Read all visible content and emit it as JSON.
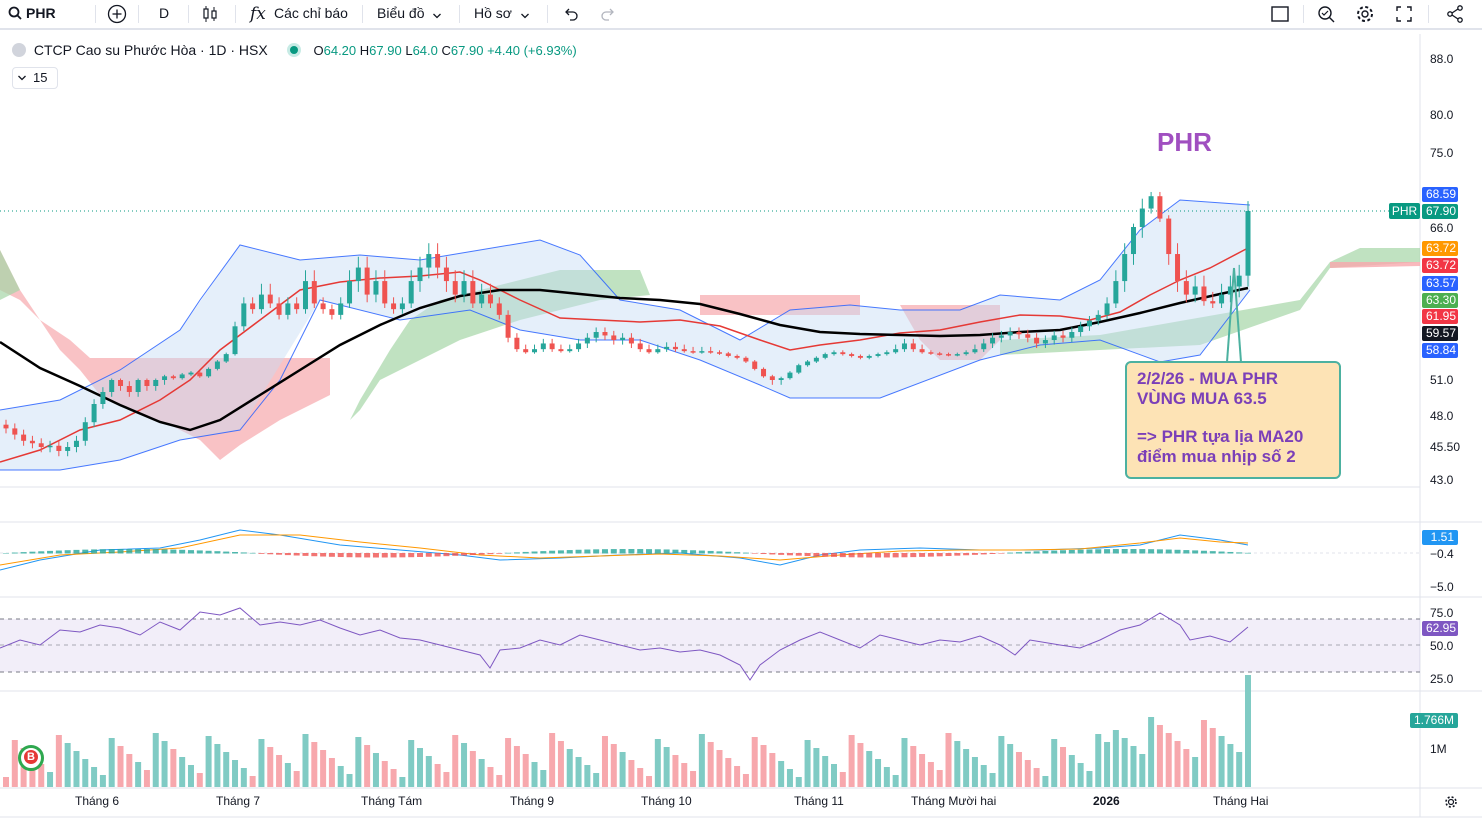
{
  "toolbar": {
    "symbol": "PHR",
    "interval": "D",
    "indicators_label": "Các chỉ báo",
    "chart_type_label": "Biểu đồ",
    "profile_label": "Hồ sơ"
  },
  "legend": {
    "title": "CTCP Cao su Phước Hòa · 1D · HSX",
    "open_key": "O",
    "open": "64.20",
    "high_key": "H",
    "high": "67.90",
    "low_key": "L",
    "low": "64.0",
    "close_key": "C",
    "close": "67.90",
    "change": "+4.40 (+6.93%)",
    "studies_count": "15"
  },
  "annotation": {
    "title": "PHR",
    "line1": "2/2/26 - MUA PHR",
    "line2": "VÙNG MUA 63.5",
    "line3": "=> PHR tựa lịa MA20",
    "line4": "điểm mua nhịp số 2"
  },
  "price_axis": {
    "labels": [
      "88.0",
      "80.0",
      "75.0",
      "66.0",
      "51.0",
      "48.0",
      "45.50",
      "43.0"
    ],
    "tags": [
      {
        "value": "68.59",
        "color": "#2962ff"
      },
      {
        "value": "67.90",
        "color": "#089981"
      },
      {
        "value": "63.72",
        "color": "#ff9800"
      },
      {
        "value": "63.72",
        "color": "#f23645"
      },
      {
        "value": "63.57",
        "color": "#2962ff"
      },
      {
        "value": "63.30",
        "color": "#4caf50"
      },
      {
        "value": "61.95",
        "color": "#f23645"
      },
      {
        "value": "59.57",
        "color": "#131722"
      },
      {
        "value": "58.84",
        "color": "#2962ff"
      }
    ],
    "symbol_tag": "PHR"
  },
  "macd_axis": {
    "labels": [
      "−0.4",
      "−5.0"
    ],
    "tag": "1.51",
    "tag_color": "#2196f3"
  },
  "rsi_axis": {
    "labels": [
      "75.0",
      "50.0",
      "25.0"
    ],
    "tag": "62.95",
    "tag_color": "#7e57c2"
  },
  "volume_axis": {
    "labels": [
      "1M"
    ],
    "tag": "1.766M",
    "tag_color": "#26a69a"
  },
  "time_axis": [
    "Tháng 6",
    "Tháng 7",
    "Tháng Tám",
    "Tháng 9",
    "Tháng 10",
    "Tháng 11",
    "Tháng Mười hai",
    "2026",
    "Tháng Hai"
  ],
  "colors": {
    "up": "#26a69a",
    "down": "#ef5350",
    "ma_black": "#000000",
    "ma_red": "#e53935",
    "bb": "#2962ff"
  },
  "chart_data": {
    "type": "candlestick",
    "ylim": [
      43,
      88
    ],
    "closes": [
      47,
      46.5,
      46,
      45.8,
      45.5,
      45.6,
      45.2,
      45.5,
      46,
      47.5,
      49,
      50,
      51,
      50.5,
      50,
      51,
      50.5,
      51,
      52,
      51.5,
      52.5,
      53,
      52,
      54,
      56,
      58,
      61,
      63,
      62.5,
      63.5,
      63,
      62,
      63,
      62.5,
      64,
      63,
      62.5,
      62,
      63,
      64,
      64.5,
      63.5,
      64,
      63,
      62.5,
      63,
      64,
      64.5,
      65,
      64.5,
      64,
      63.5,
      64,
      63,
      63.5,
      63,
      62,
      60,
      59,
      58.5,
      59,
      59.5,
      59,
      58.8,
      59,
      59.5,
      60,
      60.5,
      60.2,
      59.8,
      60,
      59.5,
      59,
      58.5,
      59,
      59.2,
      59,
      58.8,
      58.5,
      58.8,
      58.5,
      58.2,
      57.5,
      57,
      56,
      54,
      52,
      51,
      51.5,
      53,
      55,
      56,
      57,
      58,
      58.5,
      58,
      57.5,
      57,
      57.5,
      58,
      58.5,
      59,
      59.5,
      59,
      58.5,
      58.2,
      58,
      57.8,
      58,
      58.5,
      59,
      59.5,
      60,
      60.2,
      60.5,
      60.3,
      60,
      59.5,
      59.8,
      60.2,
      60,
      60.5,
      61,
      61.5,
      62,
      63,
      64,
      65,
      66,
      68,
      68.5,
      67,
      65,
      64,
      63.5,
      63.8,
      63.2,
      63,
      63.5,
      63.8,
      64.2,
      67.9
    ]
  }
}
